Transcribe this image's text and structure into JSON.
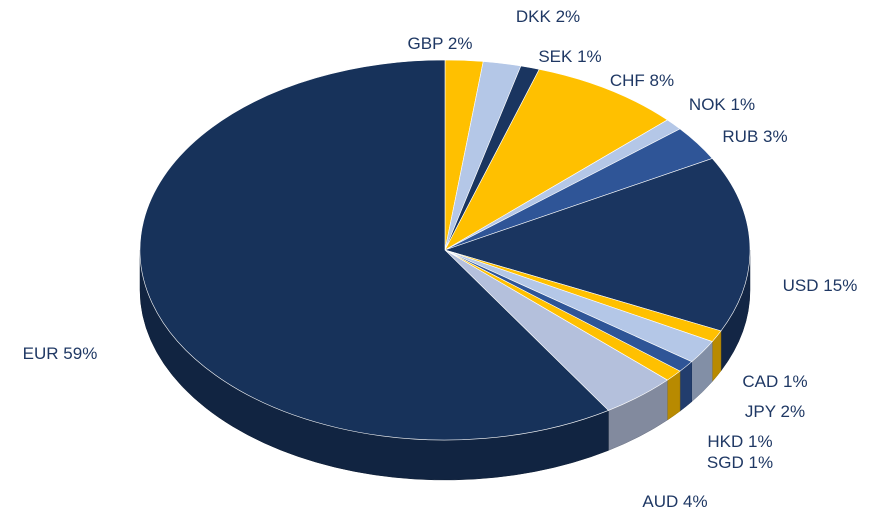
{
  "chart_data": {
    "type": "pie",
    "categories": [
      "GBP",
      "DKK",
      "SEK",
      "CHF",
      "NOK",
      "RUB",
      "USD",
      "CAD",
      "JPY",
      "HKD",
      "SGD",
      "AUD",
      "EUR"
    ],
    "values": [
      2,
      2,
      1,
      8,
      1,
      3,
      15,
      1,
      2,
      1,
      1,
      4,
      59
    ],
    "value_labels": [
      "2%",
      "2%",
      "1%",
      "8%",
      "1%",
      "3%",
      "15%",
      "1%",
      "2%",
      "1%",
      "1%",
      "4%",
      "59%"
    ],
    "colors": [
      "#FFC000",
      "#B4C7E7",
      "#1A3560",
      "#FFC000",
      "#B4C7E7",
      "#2F5597",
      "#1A3560",
      "#FFC000",
      "#B4C7E7",
      "#2F5597",
      "#FFC000",
      "#B4C0DC",
      "#17325A"
    ]
  }
}
